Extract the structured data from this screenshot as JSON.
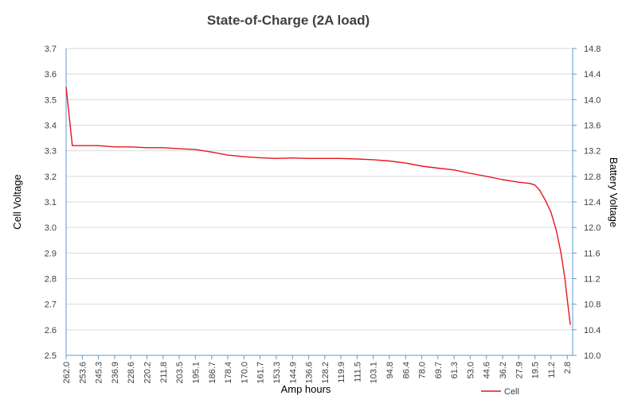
{
  "chart_data": {
    "type": "line",
    "title": "State-of-Charge (2A load)",
    "xlabel": "Amp hours",
    "ylabel": "Cell Voltage",
    "y2label": "Battery Voltage",
    "ylim": [
      2.5,
      3.7
    ],
    "y2lim": [
      10.0,
      14.8
    ],
    "x_reversed": true,
    "grid": true,
    "legend_position": "bottom-right",
    "y_ticks": [
      "2.5",
      "2.6",
      "2.7",
      "2.8",
      "2.9",
      "3.0",
      "3.1",
      "3.2",
      "3.3",
      "3.4",
      "3.5",
      "3.6",
      "3.7"
    ],
    "y2_ticks": [
      "10.0",
      "10.4",
      "10.8",
      "11.2",
      "11.6",
      "12.0",
      "12.4",
      "12.8",
      "13.2",
      "13.6",
      "14.0",
      "14.4",
      "14.8"
    ],
    "x_ticks": [
      "262.0",
      "253.6",
      "245.3",
      "236.9",
      "228.6",
      "220.2",
      "211.8",
      "203.5",
      "195.1",
      "186.7",
      "178.4",
      "170.0",
      "161.7",
      "153.3",
      "144.9",
      "136.6",
      "128.2",
      "119.9",
      "111.5",
      "103.1",
      "94.8",
      "86.4",
      "78.0",
      "69.7",
      "61.3",
      "53.0",
      "44.6",
      "36.2",
      "27.9",
      "19.5",
      "11.2",
      "2.8"
    ],
    "series": [
      {
        "name": "Cell",
        "color": "#e8141c",
        "x": [
          262.0,
          258.8,
          253.6,
          245.3,
          236.9,
          228.6,
          220.2,
          211.8,
          203.5,
          195.1,
          186.7,
          178.4,
          170.0,
          161.7,
          153.3,
          144.9,
          136.6,
          128.2,
          119.9,
          111.5,
          103.1,
          94.8,
          86.4,
          78.0,
          69.7,
          61.3,
          53.0,
          44.6,
          36.2,
          27.9,
          22.0,
          19.5,
          17.0,
          14.0,
          11.2,
          8.5,
          6.0,
          4.0,
          2.8,
          1.2
        ],
        "values": [
          3.55,
          3.32,
          3.32,
          3.32,
          3.315,
          3.315,
          3.312,
          3.312,
          3.308,
          3.305,
          3.295,
          3.283,
          3.277,
          3.273,
          3.27,
          3.272,
          3.27,
          3.27,
          3.27,
          3.268,
          3.265,
          3.26,
          3.252,
          3.24,
          3.232,
          3.225,
          3.212,
          3.2,
          3.187,
          3.177,
          3.172,
          3.166,
          3.145,
          3.105,
          3.06,
          2.99,
          2.9,
          2.8,
          2.72,
          2.62
        ]
      }
    ]
  }
}
